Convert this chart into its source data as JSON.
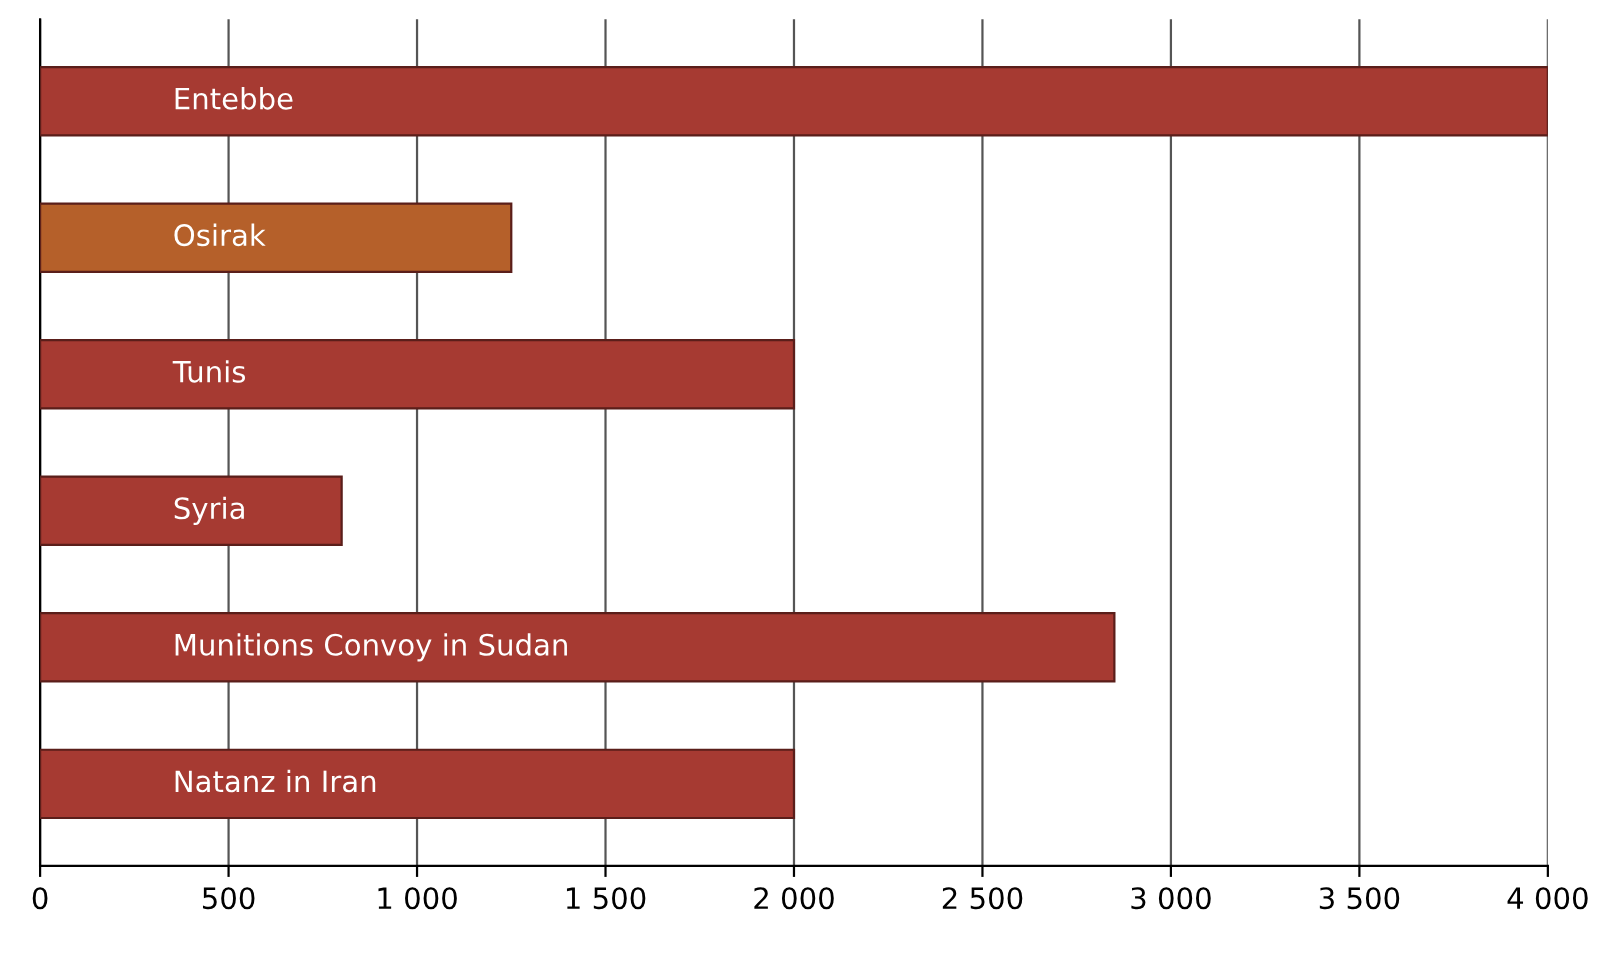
{
  "chart_data": {
    "type": "bar",
    "orientation": "horizontal",
    "categories": [
      "Entebbe",
      "Osirak",
      "Tunis",
      "Syria",
      "Munitions Convoy in Sudan",
      "Natanz in Iran"
    ],
    "values": [
      4000,
      1250,
      2000,
      800,
      2850,
      2000
    ],
    "colors": [
      "#a63a32",
      "#b5602a",
      "#a63a32",
      "#a63a32",
      "#a63a32",
      "#a63a32"
    ],
    "xlim": [
      0,
      4000
    ],
    "xticks": [
      0,
      500,
      {
        "value": 1000,
        "label": "1 000"
      },
      {
        "value": 1500,
        "label": "1 500"
      },
      {
        "value": 2000,
        "label": "2 000"
      },
      {
        "value": 2500,
        "label": "2 500"
      },
      {
        "value": 3000,
        "label": "3 000"
      },
      {
        "value": 3500,
        "label": "3 500"
      },
      {
        "value": 4000,
        "label": "4 000"
      }
    ],
    "grid": "x"
  }
}
